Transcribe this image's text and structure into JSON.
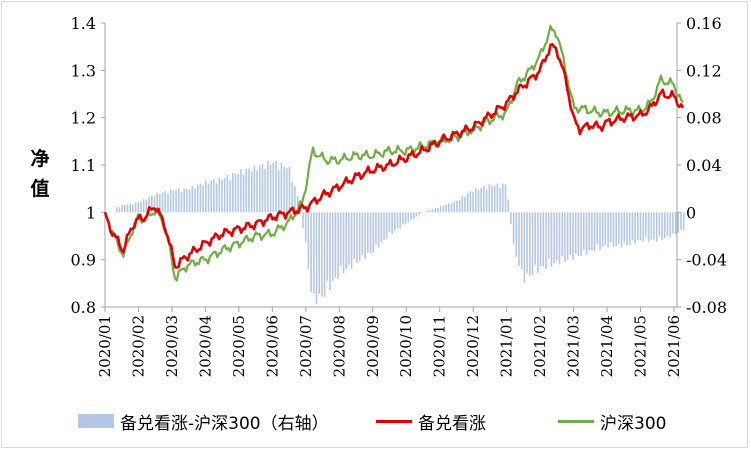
{
  "chart_data": {
    "type": "line",
    "ylabel": "净值",
    "ylim": [
      0.8,
      1.4
    ],
    "yticks": [
      "0.8",
      "0.9",
      "1",
      "1.1",
      "1.2",
      "1.3",
      "1.4"
    ],
    "y2lim": [
      -0.08,
      0.16
    ],
    "y2ticks": [
      "-0.08",
      "-0.04",
      "0",
      "0.04",
      "0.08",
      "0.12",
      "0.16"
    ],
    "categories": [
      "2020/01",
      "2020/02",
      "2020/03",
      "2020/04",
      "2020/05",
      "2020/06",
      "2020/07",
      "2020/08",
      "2020/09",
      "2020/10",
      "2020/11",
      "2020/12",
      "2021/01",
      "2021/02",
      "2021/03",
      "2021/04",
      "2021/05",
      "2021/06"
    ],
    "grid": false,
    "legend_position": "bottom",
    "series": [
      {
        "name": "备兑看涨-沪深300（右轴）",
        "type": "bar",
        "axis": "right",
        "color": "#b4c7e7",
        "points": [
          [
            0.0,
            0.0
          ],
          [
            0.5,
            0.006
          ],
          [
            1.0,
            0.009
          ],
          [
            1.5,
            0.016
          ],
          [
            2.0,
            0.02
          ],
          [
            2.5,
            0.021
          ],
          [
            3.0,
            0.027
          ],
          [
            3.5,
            0.03
          ],
          [
            4.0,
            0.036
          ],
          [
            4.5,
            0.04
          ],
          [
            5.0,
            0.045
          ],
          [
            5.5,
            0.04
          ],
          [
            5.8,
            0.01
          ],
          [
            6.0,
            -0.03
          ],
          [
            6.2,
            -0.08
          ],
          [
            6.5,
            -0.075
          ],
          [
            7.0,
            -0.055
          ],
          [
            7.5,
            -0.045
          ],
          [
            8.0,
            -0.035
          ],
          [
            8.5,
            -0.02
          ],
          [
            9.0,
            -0.01
          ],
          [
            9.5,
            0.0
          ],
          [
            10.0,
            0.005
          ],
          [
            10.5,
            0.01
          ],
          [
            11.0,
            0.02
          ],
          [
            11.5,
            0.024
          ],
          [
            12.0,
            0.025
          ],
          [
            12.2,
            -0.03
          ],
          [
            12.5,
            -0.06
          ],
          [
            13.0,
            -0.05
          ],
          [
            13.5,
            -0.045
          ],
          [
            14.0,
            -0.04
          ],
          [
            14.5,
            -0.035
          ],
          [
            15.0,
            -0.03
          ],
          [
            15.5,
            -0.03
          ],
          [
            16.0,
            -0.025
          ],
          [
            16.5,
            -0.025
          ],
          [
            17.0,
            -0.02
          ],
          [
            17.3,
            -0.015
          ]
        ]
      },
      {
        "name": "备兑看涨",
        "type": "line",
        "axis": "left",
        "color": "#e00000",
        "points": [
          [
            0.0,
            1.0
          ],
          [
            0.2,
            0.96
          ],
          [
            0.55,
            0.92
          ],
          [
            0.8,
            0.97
          ],
          [
            1.0,
            0.985
          ],
          [
            1.2,
            0.99
          ],
          [
            1.5,
            1.015
          ],
          [
            1.8,
            0.97
          ],
          [
            2.1,
            0.885
          ],
          [
            2.4,
            0.905
          ],
          [
            2.7,
            0.92
          ],
          [
            3.0,
            0.935
          ],
          [
            3.5,
            0.955
          ],
          [
            4.0,
            0.965
          ],
          [
            4.5,
            0.975
          ],
          [
            5.0,
            0.99
          ],
          [
            5.5,
            1.0
          ],
          [
            6.0,
            1.01
          ],
          [
            6.5,
            1.035
          ],
          [
            7.0,
            1.055
          ],
          [
            7.5,
            1.075
          ],
          [
            8.0,
            1.09
          ],
          [
            8.5,
            1.1
          ],
          [
            9.0,
            1.115
          ],
          [
            9.5,
            1.13
          ],
          [
            10.0,
            1.15
          ],
          [
            10.5,
            1.165
          ],
          [
            11.0,
            1.18
          ],
          [
            11.5,
            1.205
          ],
          [
            12.0,
            1.23
          ],
          [
            12.3,
            1.255
          ],
          [
            12.7,
            1.28
          ],
          [
            13.0,
            1.3
          ],
          [
            13.3,
            1.35
          ],
          [
            13.5,
            1.345
          ],
          [
            13.8,
            1.27
          ],
          [
            14.0,
            1.195
          ],
          [
            14.2,
            1.175
          ],
          [
            14.5,
            1.185
          ],
          [
            14.8,
            1.18
          ],
          [
            15.0,
            1.19
          ],
          [
            15.5,
            1.2
          ],
          [
            16.0,
            1.205
          ],
          [
            16.3,
            1.22
          ],
          [
            16.6,
            1.25
          ],
          [
            17.0,
            1.245
          ],
          [
            17.3,
            1.215
          ]
        ]
      },
      {
        "name": "沪深300",
        "type": "line",
        "axis": "left",
        "color": "#70ad47",
        "points": [
          [
            0.0,
            1.0
          ],
          [
            0.2,
            0.96
          ],
          [
            0.55,
            0.91
          ],
          [
            0.8,
            0.96
          ],
          [
            1.0,
            0.99
          ],
          [
            1.2,
            0.985
          ],
          [
            1.5,
            1.005
          ],
          [
            1.8,
            0.97
          ],
          [
            2.1,
            0.86
          ],
          [
            2.4,
            0.885
          ],
          [
            2.7,
            0.895
          ],
          [
            3.0,
            0.9
          ],
          [
            3.5,
            0.92
          ],
          [
            4.0,
            0.935
          ],
          [
            4.5,
            0.95
          ],
          [
            5.0,
            0.955
          ],
          [
            5.5,
            0.98
          ],
          [
            5.9,
            1.02
          ],
          [
            6.2,
            1.13
          ],
          [
            6.6,
            1.11
          ],
          [
            7.0,
            1.11
          ],
          [
            7.5,
            1.12
          ],
          [
            8.0,
            1.12
          ],
          [
            8.5,
            1.13
          ],
          [
            9.0,
            1.13
          ],
          [
            9.5,
            1.14
          ],
          [
            10.0,
            1.15
          ],
          [
            10.5,
            1.16
          ],
          [
            11.0,
            1.175
          ],
          [
            11.5,
            1.195
          ],
          [
            12.0,
            1.21
          ],
          [
            12.3,
            1.27
          ],
          [
            12.7,
            1.3
          ],
          [
            13.0,
            1.33
          ],
          [
            13.3,
            1.385
          ],
          [
            13.5,
            1.38
          ],
          [
            13.8,
            1.29
          ],
          [
            14.0,
            1.22
          ],
          [
            14.2,
            1.22
          ],
          [
            14.5,
            1.215
          ],
          [
            14.8,
            1.21
          ],
          [
            15.0,
            1.21
          ],
          [
            15.5,
            1.215
          ],
          [
            16.0,
            1.215
          ],
          [
            16.3,
            1.23
          ],
          [
            16.6,
            1.28
          ],
          [
            17.0,
            1.27
          ],
          [
            17.3,
            1.22
          ]
        ]
      }
    ]
  }
}
